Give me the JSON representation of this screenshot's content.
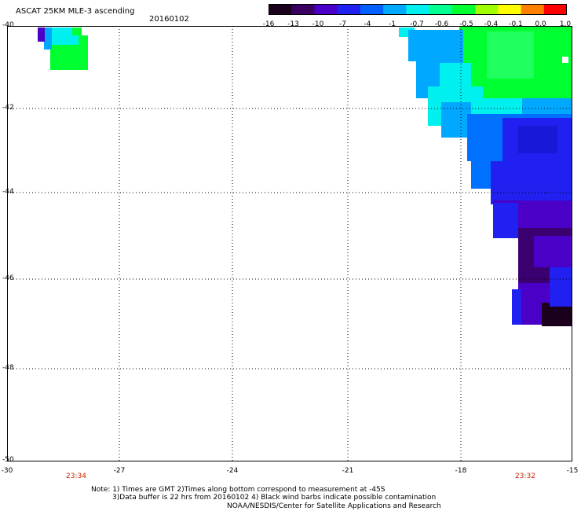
{
  "header": {
    "title": "ASCAT 25KM MLE-3 ascending",
    "date": "20160102"
  },
  "colorbar": {
    "labels": [
      "-16",
      "-13",
      "-10",
      "-7",
      "-4",
      "-1",
      "-0.7",
      "-0.6",
      "-0.5",
      "-0.4",
      "-0.1",
      "0.0",
      "1.0"
    ],
    "colors": [
      "#1a001a",
      "#3a0060",
      "#4b00c8",
      "#2020f0",
      "#0060ff",
      "#00a8ff",
      "#00f0f0",
      "#00ff90",
      "#00ff30",
      "#a0ff00",
      "#ffff00",
      "#ff8000",
      "#ff0000"
    ]
  },
  "axes": {
    "lat_labels": [
      "-40",
      "-42",
      "-44",
      "-46",
      "-48",
      "-50"
    ],
    "lon_labels": [
      "-30",
      "-27",
      "-24",
      "-21",
      "-18",
      "-15"
    ]
  },
  "times": {
    "left": "23:34",
    "right": "23:32"
  },
  "notes": {
    "line1": "Note: 1) Times are GMT 2)Times along bottom correspond to measurement at -45S",
    "line2": "3)Data buffer is 22 hrs from 20160102 4) Black wind barbs indicate possible contamination",
    "line3": "NOAA/NESDIS/Center for Satellite Applications and Research"
  }
}
